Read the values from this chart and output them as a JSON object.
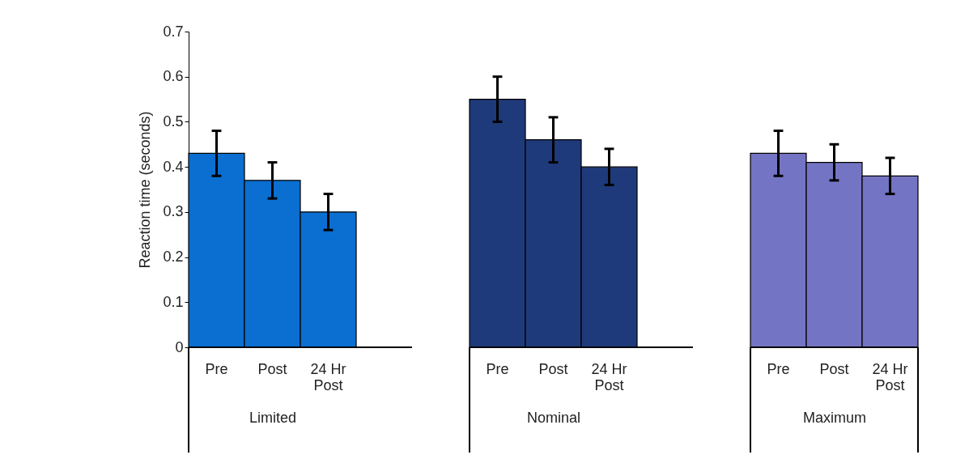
{
  "chart_data": [
    {
      "type": "bar",
      "ylabel": "Reaction time (seconds)",
      "xlabel": "Limited",
      "categories": [
        "Pre",
        "Post",
        "24 Hr\nPost"
      ],
      "series": [
        {
          "color": "#0a6fd0",
          "values": [
            0.43,
            0.37,
            0.3
          ],
          "errors": [
            [
              0.38,
              0.48
            ],
            [
              0.33,
              0.41
            ],
            [
              0.26,
              0.34
            ]
          ]
        }
      ],
      "ylim": [
        0,
        0.7
      ],
      "yticks": [
        0,
        0.1,
        0.2,
        0.3,
        0.4,
        0.5,
        0.6,
        0.7
      ]
    },
    {
      "type": "bar",
      "xlabel": "Nominal",
      "categories": [
        "Pre",
        "Post",
        "24 Hr\nPost"
      ],
      "series": [
        {
          "color": "#1f3a7a",
          "values": [
            0.55,
            0.46,
            0.4
          ],
          "errors": [
            [
              0.5,
              0.6
            ],
            [
              0.41,
              0.51
            ],
            [
              0.36,
              0.44
            ]
          ]
        }
      ],
      "ylim": [
        0,
        0.7
      ],
      "tick_labels": "x"
    },
    {
      "type": "bar",
      "xlabel": "Maximum",
      "categories": [
        "Pre",
        "Post",
        "24 Hr\nPost"
      ],
      "series": [
        {
          "color": "#7474c4",
          "values": [
            0.43,
            0.41,
            0.38
          ],
          "errors": [
            [
              0.38,
              0.48
            ],
            [
              0.37,
              0.45
            ],
            [
              0.34,
              0.42
            ]
          ]
        }
      ],
      "ylim": [
        0,
        0.7
      ],
      "tick_labels": "x"
    }
  ]
}
